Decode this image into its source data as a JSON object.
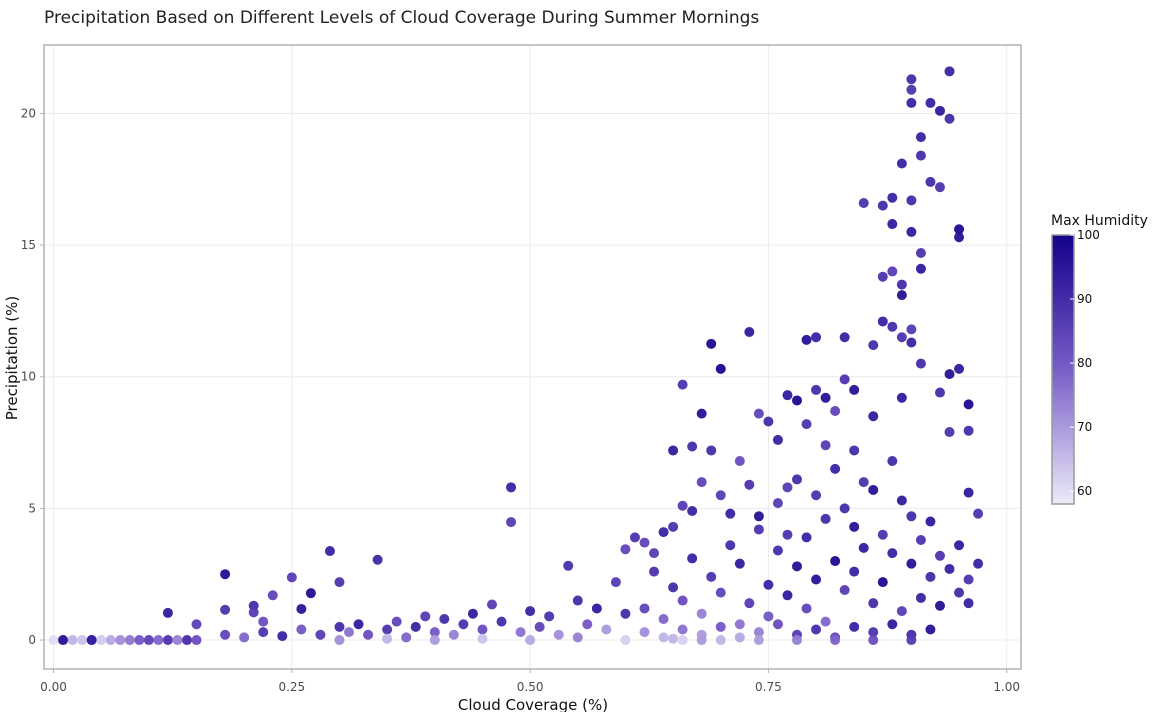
{
  "chart_data": {
    "type": "scatter",
    "title": "Precipitation Based on Different Levels of Cloud Coverage During Summer Mornings",
    "xlabel": "Cloud Coverage (%)",
    "ylabel": "Precipitation (%)",
    "xlim": [
      -0.01,
      1.015
    ],
    "ylim": [
      -1.1,
      22.6
    ],
    "xticks": [
      0.0,
      0.25,
      0.5,
      0.75,
      1.0
    ],
    "xtick_labels": [
      "0.00",
      "0.25",
      "0.50",
      "0.75",
      "1.00"
    ],
    "yticks": [
      0,
      5,
      10,
      15,
      20
    ],
    "ytick_labels": [
      "0",
      "5",
      "10",
      "15",
      "20"
    ],
    "grid": true,
    "color_scale": {
      "title": "Max Humidity",
      "min": 58,
      "max": 100,
      "ticks": [
        60,
        70,
        80,
        90,
        100
      ],
      "low_color": "#ecebf9",
      "mid_color": "#6e4fc2",
      "high_color": "#14028a",
      "placement": "right"
    },
    "points": [
      {
        "x": 0.0,
        "y": 0.0,
        "h": 60
      },
      {
        "x": 0.01,
        "y": 0.0,
        "h": 62
      },
      {
        "x": 0.02,
        "y": 0.0,
        "h": 66
      },
      {
        "x": 0.03,
        "y": 0.0,
        "h": 64
      },
      {
        "x": 0.04,
        "y": 0.0,
        "h": 70
      },
      {
        "x": 0.05,
        "y": 0.0,
        "h": 63
      },
      {
        "x": 0.06,
        "y": 0.0,
        "h": 68
      },
      {
        "x": 0.07,
        "y": 0.0,
        "h": 72
      },
      {
        "x": 0.08,
        "y": 0.0,
        "h": 75
      },
      {
        "x": 0.09,
        "y": 0.0,
        "h": 80
      },
      {
        "x": 0.1,
        "y": 0.0,
        "h": 85
      },
      {
        "x": 0.11,
        "y": 0.0,
        "h": 78
      },
      {
        "x": 0.12,
        "y": 0.0,
        "h": 88
      },
      {
        "x": 0.13,
        "y": 0.0,
        "h": 74
      },
      {
        "x": 0.14,
        "y": 0.0,
        "h": 90
      },
      {
        "x": 0.15,
        "y": 0.0,
        "h": 82
      },
      {
        "x": 0.01,
        "y": 0.0,
        "h": 96
      },
      {
        "x": 0.04,
        "y": 0.0,
        "h": 94
      },
      {
        "x": 0.12,
        "y": 1.03,
        "h": 94
      },
      {
        "x": 0.15,
        "y": 0.6,
        "h": 85
      },
      {
        "x": 0.18,
        "y": 2.5,
        "h": 97
      },
      {
        "x": 0.18,
        "y": 1.15,
        "h": 88
      },
      {
        "x": 0.21,
        "y": 1.3,
        "h": 90
      },
      {
        "x": 0.21,
        "y": 1.05,
        "h": 86
      },
      {
        "x": 0.22,
        "y": 0.7,
        "h": 82
      },
      {
        "x": 0.23,
        "y": 1.7,
        "h": 84
      },
      {
        "x": 0.25,
        "y": 2.38,
        "h": 86
      },
      {
        "x": 0.26,
        "y": 1.18,
        "h": 95
      },
      {
        "x": 0.27,
        "y": 1.78,
        "h": 97
      },
      {
        "x": 0.29,
        "y": 3.38,
        "h": 92
      },
      {
        "x": 0.3,
        "y": 2.2,
        "h": 88
      },
      {
        "x": 0.34,
        "y": 3.05,
        "h": 91
      },
      {
        "x": 0.48,
        "y": 5.8,
        "h": 92
      },
      {
        "x": 0.48,
        "y": 4.48,
        "h": 86
      },
      {
        "x": 0.54,
        "y": 2.82,
        "h": 89
      },
      {
        "x": 0.18,
        "y": 0.2,
        "h": 84
      },
      {
        "x": 0.2,
        "y": 0.1,
        "h": 78
      },
      {
        "x": 0.22,
        "y": 0.3,
        "h": 88
      },
      {
        "x": 0.24,
        "y": 0.15,
        "h": 92
      },
      {
        "x": 0.26,
        "y": 0.4,
        "h": 80
      },
      {
        "x": 0.28,
        "y": 0.2,
        "h": 86
      },
      {
        "x": 0.3,
        "y": 0.5,
        "h": 90
      },
      {
        "x": 0.31,
        "y": 0.3,
        "h": 76
      },
      {
        "x": 0.32,
        "y": 0.6,
        "h": 94
      },
      {
        "x": 0.33,
        "y": 0.2,
        "h": 82
      },
      {
        "x": 0.35,
        "y": 0.4,
        "h": 88
      },
      {
        "x": 0.36,
        "y": 0.7,
        "h": 84
      },
      {
        "x": 0.37,
        "y": 0.1,
        "h": 78
      },
      {
        "x": 0.38,
        "y": 0.5,
        "h": 92
      },
      {
        "x": 0.39,
        "y": 0.9,
        "h": 86
      },
      {
        "x": 0.4,
        "y": 0.3,
        "h": 80
      },
      {
        "x": 0.41,
        "y": 0.8,
        "h": 90
      },
      {
        "x": 0.42,
        "y": 0.2,
        "h": 74
      },
      {
        "x": 0.43,
        "y": 0.6,
        "h": 88
      },
      {
        "x": 0.44,
        "y": 1.0,
        "h": 94
      },
      {
        "x": 0.45,
        "y": 0.4,
        "h": 82
      },
      {
        "x": 0.46,
        "y": 1.35,
        "h": 86
      },
      {
        "x": 0.47,
        "y": 0.7,
        "h": 90
      },
      {
        "x": 0.49,
        "y": 0.3,
        "h": 76
      },
      {
        "x": 0.5,
        "y": 1.1,
        "h": 92
      },
      {
        "x": 0.51,
        "y": 0.5,
        "h": 84
      },
      {
        "x": 0.52,
        "y": 0.9,
        "h": 88
      },
      {
        "x": 0.53,
        "y": 0.2,
        "h": 72
      },
      {
        "x": 0.55,
        "y": 1.5,
        "h": 90
      },
      {
        "x": 0.56,
        "y": 0.6,
        "h": 80
      },
      {
        "x": 0.57,
        "y": 1.2,
        "h": 94
      },
      {
        "x": 0.58,
        "y": 0.4,
        "h": 70
      },
      {
        "x": 0.59,
        "y": 2.2,
        "h": 86
      },
      {
        "x": 0.6,
        "y": 3.45,
        "h": 84
      },
      {
        "x": 0.6,
        "y": 1.0,
        "h": 90
      },
      {
        "x": 0.3,
        "y": 0.0,
        "h": 72
      },
      {
        "x": 0.35,
        "y": 0.05,
        "h": 66
      },
      {
        "x": 0.4,
        "y": 0.0,
        "h": 70
      },
      {
        "x": 0.45,
        "y": 0.05,
        "h": 64
      },
      {
        "x": 0.5,
        "y": 0.0,
        "h": 68
      },
      {
        "x": 0.55,
        "y": 0.1,
        "h": 74
      },
      {
        "x": 0.6,
        "y": 0.0,
        "h": 62
      },
      {
        "x": 0.65,
        "y": 0.05,
        "h": 66
      },
      {
        "x": 0.68,
        "y": 0.0,
        "h": 70
      },
      {
        "x": 0.61,
        "y": 3.9,
        "h": 88
      },
      {
        "x": 0.62,
        "y": 3.7,
        "h": 84
      },
      {
        "x": 0.63,
        "y": 3.3,
        "h": 86
      },
      {
        "x": 0.64,
        "y": 4.1,
        "h": 92
      },
      {
        "x": 0.65,
        "y": 4.3,
        "h": 88
      },
      {
        "x": 0.65,
        "y": 7.2,
        "h": 94
      },
      {
        "x": 0.66,
        "y": 9.7,
        "h": 88
      },
      {
        "x": 0.66,
        "y": 5.1,
        "h": 86
      },
      {
        "x": 0.67,
        "y": 7.35,
        "h": 90
      },
      {
        "x": 0.67,
        "y": 4.9,
        "h": 92
      },
      {
        "x": 0.68,
        "y": 8.6,
        "h": 96
      },
      {
        "x": 0.68,
        "y": 6.0,
        "h": 84
      },
      {
        "x": 0.69,
        "y": 11.25,
        "h": 98
      },
      {
        "x": 0.69,
        "y": 7.2,
        "h": 90
      },
      {
        "x": 0.7,
        "y": 10.3,
        "h": 99
      },
      {
        "x": 0.7,
        "y": 5.5,
        "h": 86
      },
      {
        "x": 0.71,
        "y": 4.8,
        "h": 92
      },
      {
        "x": 0.72,
        "y": 6.8,
        "h": 82
      },
      {
        "x": 0.73,
        "y": 11.7,
        "h": 94
      },
      {
        "x": 0.73,
        "y": 5.9,
        "h": 88
      },
      {
        "x": 0.74,
        "y": 8.6,
        "h": 84
      },
      {
        "x": 0.74,
        "y": 4.7,
        "h": 96
      },
      {
        "x": 0.75,
        "y": 8.3,
        "h": 90
      },
      {
        "x": 0.76,
        "y": 7.6,
        "h": 92
      },
      {
        "x": 0.77,
        "y": 9.3,
        "h": 94
      },
      {
        "x": 0.77,
        "y": 5.8,
        "h": 86
      },
      {
        "x": 0.78,
        "y": 9.1,
        "h": 98
      },
      {
        "x": 0.79,
        "y": 11.4,
        "h": 96
      },
      {
        "x": 0.79,
        "y": 8.2,
        "h": 88
      },
      {
        "x": 0.8,
        "y": 11.5,
        "h": 92
      },
      {
        "x": 0.8,
        "y": 9.5,
        "h": 90
      },
      {
        "x": 0.81,
        "y": 7.4,
        "h": 86
      },
      {
        "x": 0.81,
        "y": 9.2,
        "h": 96
      },
      {
        "x": 0.82,
        "y": 8.7,
        "h": 84
      },
      {
        "x": 0.83,
        "y": 11.5,
        "h": 92
      },
      {
        "x": 0.83,
        "y": 9.9,
        "h": 88
      },
      {
        "x": 0.84,
        "y": 9.5,
        "h": 96
      },
      {
        "x": 0.84,
        "y": 7.2,
        "h": 90
      },
      {
        "x": 0.85,
        "y": 16.6,
        "h": 88
      },
      {
        "x": 0.86,
        "y": 11.2,
        "h": 90
      },
      {
        "x": 0.86,
        "y": 8.5,
        "h": 94
      },
      {
        "x": 0.87,
        "y": 16.5,
        "h": 90
      },
      {
        "x": 0.87,
        "y": 13.8,
        "h": 88
      },
      {
        "x": 0.87,
        "y": 12.1,
        "h": 92
      },
      {
        "x": 0.88,
        "y": 16.8,
        "h": 92
      },
      {
        "x": 0.88,
        "y": 15.8,
        "h": 94
      },
      {
        "x": 0.88,
        "y": 14.0,
        "h": 86
      },
      {
        "x": 0.88,
        "y": 11.9,
        "h": 90
      },
      {
        "x": 0.89,
        "y": 18.1,
        "h": 92
      },
      {
        "x": 0.89,
        "y": 13.5,
        "h": 90
      },
      {
        "x": 0.89,
        "y": 13.1,
        "h": 96
      },
      {
        "x": 0.89,
        "y": 11.5,
        "h": 88
      },
      {
        "x": 0.89,
        "y": 9.2,
        "h": 94
      },
      {
        "x": 0.9,
        "y": 21.3,
        "h": 90
      },
      {
        "x": 0.9,
        "y": 20.9,
        "h": 88
      },
      {
        "x": 0.9,
        "y": 20.4,
        "h": 92
      },
      {
        "x": 0.9,
        "y": 16.7,
        "h": 90
      },
      {
        "x": 0.9,
        "y": 15.5,
        "h": 94
      },
      {
        "x": 0.9,
        "y": 11.8,
        "h": 86
      },
      {
        "x": 0.9,
        "y": 11.3,
        "h": 92
      },
      {
        "x": 0.91,
        "y": 19.1,
        "h": 92
      },
      {
        "x": 0.91,
        "y": 18.4,
        "h": 90
      },
      {
        "x": 0.91,
        "y": 14.7,
        "h": 88
      },
      {
        "x": 0.91,
        "y": 14.1,
        "h": 94
      },
      {
        "x": 0.91,
        "y": 10.5,
        "h": 90
      },
      {
        "x": 0.92,
        "y": 20.4,
        "h": 92
      },
      {
        "x": 0.92,
        "y": 17.4,
        "h": 90
      },
      {
        "x": 0.93,
        "y": 20.1,
        "h": 94
      },
      {
        "x": 0.93,
        "y": 17.2,
        "h": 88
      },
      {
        "x": 0.93,
        "y": 9.4,
        "h": 90
      },
      {
        "x": 0.94,
        "y": 21.6,
        "h": 92
      },
      {
        "x": 0.94,
        "y": 19.8,
        "h": 90
      },
      {
        "x": 0.94,
        "y": 10.1,
        "h": 96
      },
      {
        "x": 0.94,
        "y": 7.9,
        "h": 88
      },
      {
        "x": 0.95,
        "y": 15.6,
        "h": 98
      },
      {
        "x": 0.95,
        "y": 15.3,
        "h": 96
      },
      {
        "x": 0.95,
        "y": 10.3,
        "h": 94
      },
      {
        "x": 0.96,
        "y": 8.95,
        "h": 98
      },
      {
        "x": 0.96,
        "y": 7.95,
        "h": 90
      },
      {
        "x": 0.96,
        "y": 5.6,
        "h": 94
      },
      {
        "x": 0.97,
        "y": 4.8,
        "h": 88
      },
      {
        "x": 0.97,
        "y": 2.9,
        "h": 92
      },
      {
        "x": 0.62,
        "y": 1.2,
        "h": 84
      },
      {
        "x": 0.63,
        "y": 2.6,
        "h": 88
      },
      {
        "x": 0.64,
        "y": 0.8,
        "h": 78
      },
      {
        "x": 0.65,
        "y": 2.0,
        "h": 90
      },
      {
        "x": 0.66,
        "y": 1.5,
        "h": 82
      },
      {
        "x": 0.67,
        "y": 3.1,
        "h": 92
      },
      {
        "x": 0.68,
        "y": 1.0,
        "h": 74
      },
      {
        "x": 0.69,
        "y": 2.4,
        "h": 88
      },
      {
        "x": 0.7,
        "y": 1.8,
        "h": 84
      },
      {
        "x": 0.71,
        "y": 3.6,
        "h": 90
      },
      {
        "x": 0.72,
        "y": 0.6,
        "h": 76
      },
      {
        "x": 0.72,
        "y": 2.9,
        "h": 94
      },
      {
        "x": 0.73,
        "y": 1.4,
        "h": 86
      },
      {
        "x": 0.74,
        "y": 4.2,
        "h": 88
      },
      {
        "x": 0.75,
        "y": 2.1,
        "h": 92
      },
      {
        "x": 0.75,
        "y": 0.9,
        "h": 80
      },
      {
        "x": 0.76,
        "y": 3.4,
        "h": 90
      },
      {
        "x": 0.76,
        "y": 5.2,
        "h": 86
      },
      {
        "x": 0.77,
        "y": 1.7,
        "h": 94
      },
      {
        "x": 0.77,
        "y": 4.0,
        "h": 88
      },
      {
        "x": 0.78,
        "y": 2.8,
        "h": 96
      },
      {
        "x": 0.78,
        "y": 6.1,
        "h": 90
      },
      {
        "x": 0.79,
        "y": 1.2,
        "h": 84
      },
      {
        "x": 0.79,
        "y": 3.9,
        "h": 92
      },
      {
        "x": 0.8,
        "y": 5.5,
        "h": 88
      },
      {
        "x": 0.8,
        "y": 2.3,
        "h": 96
      },
      {
        "x": 0.81,
        "y": 4.6,
        "h": 90
      },
      {
        "x": 0.81,
        "y": 0.7,
        "h": 78
      },
      {
        "x": 0.82,
        "y": 6.5,
        "h": 92
      },
      {
        "x": 0.82,
        "y": 3.0,
        "h": 98
      },
      {
        "x": 0.83,
        "y": 5.0,
        "h": 90
      },
      {
        "x": 0.83,
        "y": 1.9,
        "h": 86
      },
      {
        "x": 0.84,
        "y": 4.3,
        "h": 96
      },
      {
        "x": 0.84,
        "y": 2.6,
        "h": 92
      },
      {
        "x": 0.85,
        "y": 6.0,
        "h": 88
      },
      {
        "x": 0.85,
        "y": 3.5,
        "h": 94
      },
      {
        "x": 0.86,
        "y": 1.4,
        "h": 90
      },
      {
        "x": 0.86,
        "y": 5.7,
        "h": 96
      },
      {
        "x": 0.87,
        "y": 4.0,
        "h": 88
      },
      {
        "x": 0.87,
        "y": 2.2,
        "h": 98
      },
      {
        "x": 0.88,
        "y": 6.8,
        "h": 90
      },
      {
        "x": 0.88,
        "y": 3.3,
        "h": 92
      },
      {
        "x": 0.89,
        "y": 5.3,
        "h": 94
      },
      {
        "x": 0.89,
        "y": 1.1,
        "h": 86
      },
      {
        "x": 0.9,
        "y": 4.7,
        "h": 90
      },
      {
        "x": 0.9,
        "y": 2.9,
        "h": 96
      },
      {
        "x": 0.91,
        "y": 3.8,
        "h": 88
      },
      {
        "x": 0.91,
        "y": 1.6,
        "h": 92
      },
      {
        "x": 0.92,
        "y": 4.5,
        "h": 94
      },
      {
        "x": 0.92,
        "y": 2.4,
        "h": 90
      },
      {
        "x": 0.93,
        "y": 3.2,
        "h": 88
      },
      {
        "x": 0.93,
        "y": 1.3,
        "h": 96
      },
      {
        "x": 0.94,
        "y": 2.7,
        "h": 92
      },
      {
        "x": 0.95,
        "y": 1.8,
        "h": 90
      },
      {
        "x": 0.95,
        "y": 3.6,
        "h": 94
      },
      {
        "x": 0.96,
        "y": 2.3,
        "h": 88
      },
      {
        "x": 0.96,
        "y": 1.4,
        "h": 92
      },
      {
        "x": 0.62,
        "y": 0.3,
        "h": 72
      },
      {
        "x": 0.64,
        "y": 0.1,
        "h": 66
      },
      {
        "x": 0.66,
        "y": 0.4,
        "h": 76
      },
      {
        "x": 0.68,
        "y": 0.2,
        "h": 70
      },
      {
        "x": 0.7,
        "y": 0.5,
        "h": 80
      },
      {
        "x": 0.72,
        "y": 0.1,
        "h": 68
      },
      {
        "x": 0.74,
        "y": 0.3,
        "h": 74
      },
      {
        "x": 0.76,
        "y": 0.6,
        "h": 82
      },
      {
        "x": 0.78,
        "y": 0.2,
        "h": 86
      },
      {
        "x": 0.8,
        "y": 0.4,
        "h": 90
      },
      {
        "x": 0.82,
        "y": 0.1,
        "h": 84
      },
      {
        "x": 0.84,
        "y": 0.5,
        "h": 92
      },
      {
        "x": 0.86,
        "y": 0.3,
        "h": 88
      },
      {
        "x": 0.88,
        "y": 0.6,
        "h": 94
      },
      {
        "x": 0.9,
        "y": 0.2,
        "h": 90
      },
      {
        "x": 0.92,
        "y": 0.4,
        "h": 96
      },
      {
        "x": 0.66,
        "y": 0.0,
        "h": 62
      },
      {
        "x": 0.7,
        "y": 0.0,
        "h": 66
      },
      {
        "x": 0.74,
        "y": 0.0,
        "h": 70
      },
      {
        "x": 0.78,
        "y": 0.0,
        "h": 74
      },
      {
        "x": 0.82,
        "y": 0.0,
        "h": 78
      },
      {
        "x": 0.86,
        "y": 0.0,
        "h": 82
      },
      {
        "x": 0.9,
        "y": 0.0,
        "h": 86
      }
    ]
  }
}
